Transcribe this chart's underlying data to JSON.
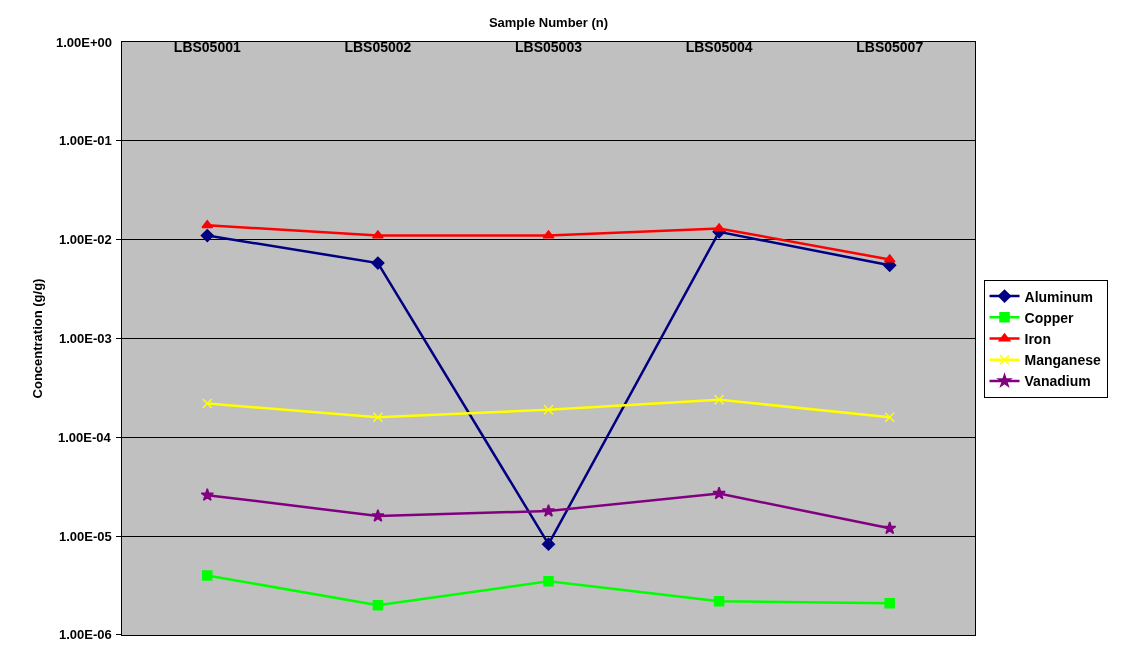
{
  "chart_data": {
    "type": "line",
    "xlabel": "Sample Number (n)",
    "ylabel": "Concentration (g/g)",
    "categories": [
      "LBS05001",
      "LBS05002",
      "LBS05003",
      "LBS05004",
      "LBS05007"
    ],
    "log": "y",
    "ylim": [
      1e-06,
      1
    ],
    "yticks": [
      {
        "value": 1e-06,
        "label": "1.00E-06"
      },
      {
        "value": 1e-05,
        "label": "1.00E-05"
      },
      {
        "value": 0.0001,
        "label": "1.00E-04"
      },
      {
        "value": 0.001,
        "label": "1.00E-03"
      },
      {
        "value": 0.01,
        "label": "1.00E-02"
      },
      {
        "value": 0.1,
        "label": "1.00E-01"
      },
      {
        "value": 1,
        "label": "1.00E+00"
      }
    ],
    "grid": "y",
    "legend": "right",
    "line_style": "solid",
    "series": [
      {
        "name": "Aluminum",
        "color": "#000080",
        "marker": "diamond",
        "values": [
          0.011,
          0.0058,
          8.3e-06,
          0.012,
          0.0055
        ]
      },
      {
        "name": "Copper",
        "color": "#00ff00",
        "marker": "square",
        "values": [
          4e-06,
          2e-06,
          3.5e-06,
          2.2e-06,
          2.1e-06
        ]
      },
      {
        "name": "Iron",
        "color": "#ff0000",
        "marker": "triangle",
        "values": [
          0.014,
          0.011,
          0.011,
          0.013,
          0.0063
        ]
      },
      {
        "name": "Manganese",
        "color": "#ffff00",
        "marker": "cross",
        "values": [
          0.00022,
          0.00016,
          0.00019,
          0.00024,
          0.00016
        ]
      },
      {
        "name": "Vanadium",
        "color": "#800080",
        "marker": "star",
        "values": [
          2.6e-05,
          1.6e-05,
          1.8e-05,
          2.7e-05,
          1.2e-05
        ]
      }
    ]
  }
}
